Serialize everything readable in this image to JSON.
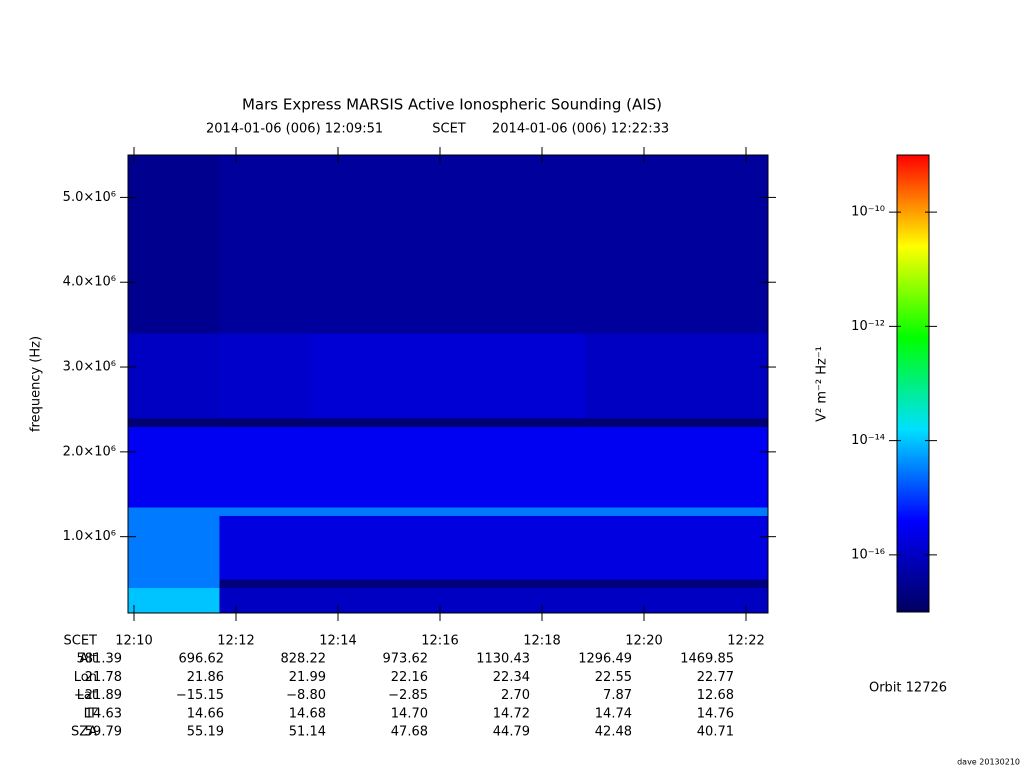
{
  "chart_data": {
    "type": "heatmap",
    "title": "Mars Express MARSIS Active Ionospheric Sounding (AIS)",
    "subtitle_start": "2014-01-06 (006) 12:09:51",
    "subtitle_mid": "SCET",
    "subtitle_end": "2014-01-06 (006) 12:22:33",
    "ylabel": "frequency (Hz)",
    "ylim": [
      100000,
      5500000
    ],
    "yticks": [
      {
        "value": 1000000,
        "label": "1.0×10⁶"
      },
      {
        "value": 2000000,
        "label": "2.0×10⁶"
      },
      {
        "value": 3000000,
        "label": "3.0×10⁶"
      },
      {
        "value": 4000000,
        "label": "4.0×10⁶"
      },
      {
        "value": 5000000,
        "label": "5.0×10⁶"
      }
    ],
    "y_bins": [
      100000,
      400000,
      500000,
      1250000,
      1350000,
      2300000,
      2400000,
      3400000,
      5500000
    ],
    "z": [
      [
        1e-14,
        1e-16,
        1e-16,
        1e-16,
        1e-16,
        1e-16,
        1e-16
      ],
      [
        3e-15,
        2e-17,
        2e-17,
        2e-17,
        2e-17,
        2e-17,
        2e-17
      ],
      [
        3e-15,
        2e-16,
        2e-16,
        2e-16,
        2e-16,
        2e-16,
        2e-16
      ],
      [
        3e-15,
        3e-15,
        3e-15,
        3e-15,
        3e-15,
        3e-15,
        3e-15
      ],
      [
        3e-16,
        3e-16,
        3e-16,
        3e-16,
        3e-16,
        3e-16,
        3e-16
      ],
      [
        1.5e-17,
        1.5e-17,
        1.5e-17,
        1.5e-17,
        1.5e-17,
        1.5e-17,
        1.5e-17
      ],
      [
        1e-16,
        1.2e-16,
        1.5e-16,
        1.5e-16,
        1.5e-16,
        1e-16,
        1e-16
      ],
      [
        3e-17,
        4e-17,
        4e-17,
        4e-17,
        4e-17,
        4e-17,
        4e-17
      ]
    ],
    "colormap": [
      "#000060",
      "#0000ff",
      "#00e0ff",
      "#00ff00",
      "#ffff00",
      "#ff0000"
    ],
    "zlim": [
      1e-17,
      1e-09
    ],
    "zlog": true,
    "zticks": [
      {
        "value": 1e-10,
        "label": "10⁻¹⁰"
      },
      {
        "value": 1e-12,
        "label": "10⁻¹²"
      },
      {
        "value": 1e-14,
        "label": "10⁻¹⁴"
      },
      {
        "value": 1e-16,
        "label": "10⁻¹⁶"
      }
    ],
    "zlabel": "V² m⁻² Hz⁻¹",
    "ephemeris": {
      "row_labels": [
        "SCET",
        "Alt",
        "Lon",
        "Lat",
        "LT",
        "SZA"
      ],
      "rows": [
        [
          "12:10",
          "12:12",
          "12:14",
          "12:16",
          "12:18",
          "12:20",
          "12:22"
        ],
        [
          "581.39",
          "696.62",
          "828.22",
          "973.62",
          "1130.43",
          "1296.49",
          "1469.85"
        ],
        [
          "21.78",
          "21.86",
          "21.99",
          "22.16",
          "22.34",
          "22.55",
          "22.77"
        ],
        [
          "−21.89",
          "−15.15",
          "−8.80",
          "−2.85",
          "2.70",
          "7.87",
          "12.68"
        ],
        [
          "14.63",
          "14.66",
          "14.68",
          "14.70",
          "14.72",
          "14.74",
          "14.76"
        ],
        [
          "59.79",
          "55.19",
          "51.14",
          "47.68",
          "44.79",
          "42.48",
          "40.71"
        ]
      ]
    },
    "orbit": "Orbit 12726",
    "footer": "dave 20130210"
  }
}
